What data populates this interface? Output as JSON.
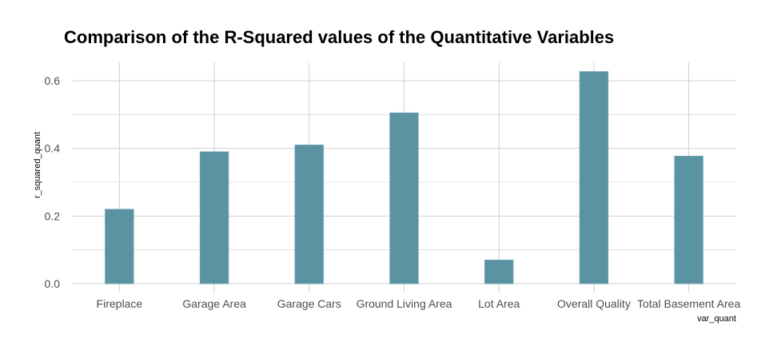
{
  "chart_data": {
    "type": "bar",
    "title": "Comparison of the R-Squared values of the Quantitative Variables",
    "xlabel": "var_quant",
    "ylabel": "r_squared_quant",
    "categories": [
      "Fireplace",
      "Garage Area",
      "Garage Cars",
      "Ground Living Area",
      "Lot Area",
      "Overall Quality",
      "Total Basement Area"
    ],
    "values": [
      0.22,
      0.39,
      0.41,
      0.505,
      0.07,
      0.627,
      0.377
    ],
    "ylim": [
      0,
      0.65
    ],
    "yticks": [
      0.0,
      0.2,
      0.4,
      0.6
    ],
    "ytick_labels": [
      "0.0",
      "0.2",
      "0.4",
      "0.6"
    ],
    "grid": true,
    "legend": "none",
    "colors": {
      "bar_fill": "#5b93a2",
      "bar_stroke": "#6aa6b5",
      "grid": "#d0d0d0",
      "tick_text": "#4d4d4d",
      "title": "#000000"
    }
  }
}
